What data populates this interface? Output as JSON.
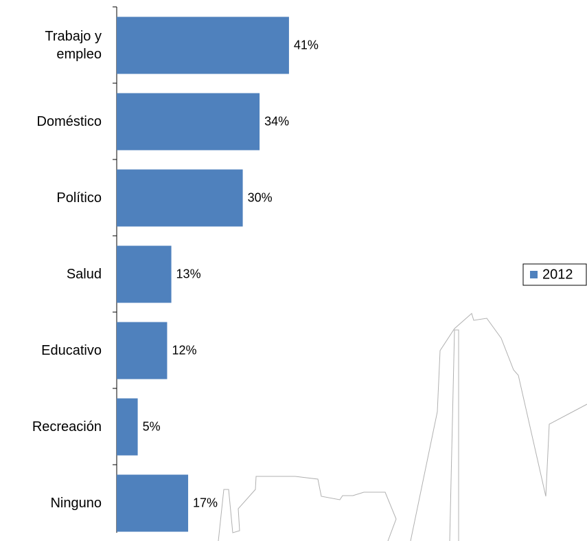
{
  "chart_data": {
    "type": "bar",
    "orientation": "horizontal",
    "categories": [
      "Trabajo y empleo",
      "Doméstico",
      "Político",
      "Salud",
      "Educativo",
      "Recreación",
      "Ninguno"
    ],
    "series": [
      {
        "name": "2012",
        "color": "#4f81bd",
        "values": [
          41,
          34,
          30,
          13,
          12,
          5,
          17
        ],
        "value_labels": [
          "41%",
          "34%",
          "30%",
          "13%",
          "12%",
          "5%",
          "17%"
        ]
      }
    ],
    "xlim": [
      0,
      100
    ],
    "legend": "right"
  }
}
